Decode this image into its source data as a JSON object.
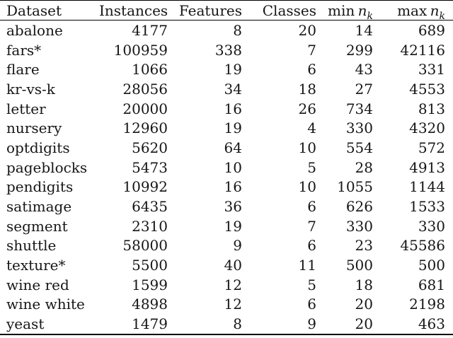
{
  "page": {
    "background": "#ffffff",
    "text_color": "#161616",
    "rule_color": "#000000"
  },
  "table": {
    "columns": [
      {
        "key": "dataset",
        "label": "Dataset",
        "align": "left"
      },
      {
        "key": "instances",
        "label": "Instances",
        "align": "right"
      },
      {
        "key": "features",
        "label": "Features",
        "align": "right"
      },
      {
        "key": "classes",
        "label": "Classes",
        "align": "right"
      },
      {
        "key": "min_nk",
        "label_prefix": "min",
        "label_var": "n",
        "label_sub": "k",
        "align": "right"
      },
      {
        "key": "max_nk",
        "label_prefix": "max",
        "label_var": "n",
        "label_sub": "k",
        "align": "right"
      }
    ],
    "rows": [
      {
        "dataset": "abalone",
        "instances": "4177",
        "features": "8",
        "classes": "20",
        "min_nk": "14",
        "max_nk": "689"
      },
      {
        "dataset": "fars*",
        "instances": "100959",
        "features": "338",
        "classes": "7",
        "min_nk": "299",
        "max_nk": "42116"
      },
      {
        "dataset": "flare",
        "instances": "1066",
        "features": "19",
        "classes": "6",
        "min_nk": "43",
        "max_nk": "331"
      },
      {
        "dataset": "kr-vs-k",
        "instances": "28056",
        "features": "34",
        "classes": "18",
        "min_nk": "27",
        "max_nk": "4553"
      },
      {
        "dataset": "letter",
        "instances": "20000",
        "features": "16",
        "classes": "26",
        "min_nk": "734",
        "max_nk": "813"
      },
      {
        "dataset": "nursery",
        "instances": "12960",
        "features": "19",
        "classes": "4",
        "min_nk": "330",
        "max_nk": "4320"
      },
      {
        "dataset": "optdigits",
        "instances": "5620",
        "features": "64",
        "classes": "10",
        "min_nk": "554",
        "max_nk": "572"
      },
      {
        "dataset": "pageblocks",
        "instances": "5473",
        "features": "10",
        "classes": "5",
        "min_nk": "28",
        "max_nk": "4913"
      },
      {
        "dataset": "pendigits",
        "instances": "10992",
        "features": "16",
        "classes": "10",
        "min_nk": "1055",
        "max_nk": "1144"
      },
      {
        "dataset": "satimage",
        "instances": "6435",
        "features": "36",
        "classes": "6",
        "min_nk": "626",
        "max_nk": "1533"
      },
      {
        "dataset": "segment",
        "instances": "2310",
        "features": "19",
        "classes": "7",
        "min_nk": "330",
        "max_nk": "330"
      },
      {
        "dataset": "shuttle",
        "instances": "58000",
        "features": "9",
        "classes": "6",
        "min_nk": "23",
        "max_nk": "45586"
      },
      {
        "dataset": "texture*",
        "instances": "5500",
        "features": "40",
        "classes": "11",
        "min_nk": "500",
        "max_nk": "500"
      },
      {
        "dataset": "wine red",
        "instances": "1599",
        "features": "12",
        "classes": "5",
        "min_nk": "18",
        "max_nk": "681"
      },
      {
        "dataset": "wine white",
        "instances": "4898",
        "features": "12",
        "classes": "6",
        "min_nk": "20",
        "max_nk": "2198"
      },
      {
        "dataset": "yeast",
        "instances": "1479",
        "features": "8",
        "classes": "9",
        "min_nk": "20",
        "max_nk": "463"
      }
    ]
  }
}
